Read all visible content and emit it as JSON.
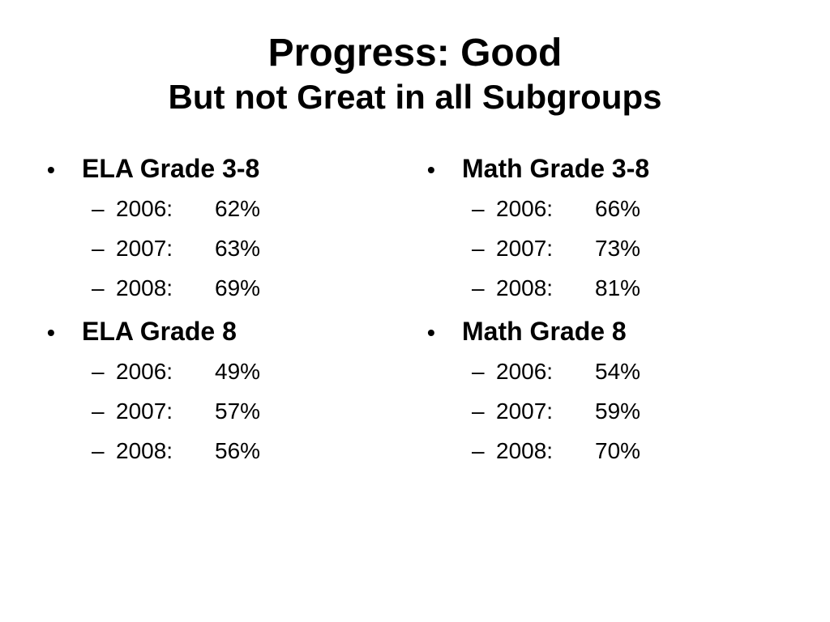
{
  "title": {
    "line1": "Progress: Good",
    "line2": "But not Great in all Subgroups"
  },
  "columns": [
    {
      "groups": [
        {
          "heading": "ELA Grade 3-8",
          "rows": [
            {
              "year": "2006:",
              "value": "62%"
            },
            {
              "year": "2007:",
              "value": "63%"
            },
            {
              "year": "2008:",
              "value": "69%"
            }
          ]
        },
        {
          "heading": "ELA Grade 8",
          "rows": [
            {
              "year": "2006:",
              "value": "49%"
            },
            {
              "year": "2007:",
              "value": "57%"
            },
            {
              "year": "2008:",
              "value": "56%"
            }
          ]
        }
      ]
    },
    {
      "groups": [
        {
          "heading": "Math Grade 3-8",
          "rows": [
            {
              "year": "2006:",
              "value": "66%"
            },
            {
              "year": "2007:",
              "value": "73%"
            },
            {
              "year": "2008:",
              "value": "81%"
            }
          ]
        },
        {
          "heading": "Math Grade 8",
          "rows": [
            {
              "year": "2006:",
              "value": "54%"
            },
            {
              "year": "2007:",
              "value": "59%"
            },
            {
              "year": "2008:",
              "value": "70%"
            }
          ]
        }
      ]
    }
  ]
}
